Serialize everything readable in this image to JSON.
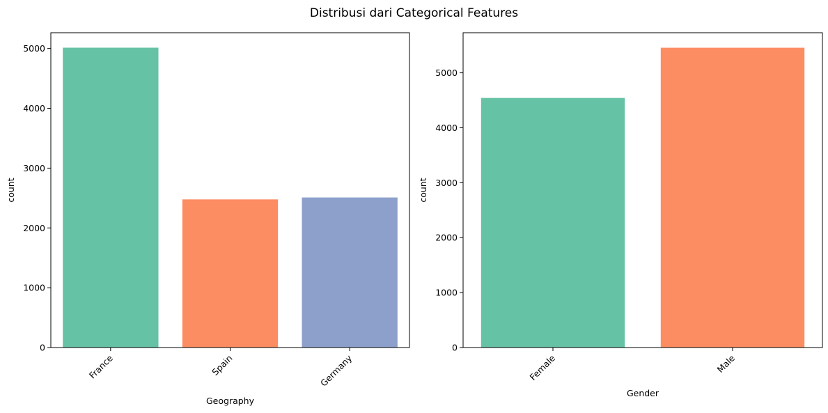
{
  "figure": {
    "title": "Distribusi dari Categorical Features"
  },
  "chart_data": [
    {
      "type": "bar",
      "title": "",
      "xlabel": "Geography",
      "ylabel": "count",
      "categories": [
        "France",
        "Spain",
        "Germany"
      ],
      "values": [
        5014,
        2477,
        2509
      ],
      "colors": [
        "#66c2a5",
        "#fc8d62",
        "#8da0cb"
      ],
      "ylim": [
        0,
        5264
      ],
      "yticks": [
        0,
        1000,
        2000,
        3000,
        4000,
        5000
      ],
      "ytick_labels": [
        "0",
        "1000",
        "2000",
        "3000",
        "4000",
        "5000"
      ],
      "xtick_rotation": 45,
      "grid": false,
      "legend": "none"
    },
    {
      "type": "bar",
      "title": "",
      "xlabel": "Gender",
      "ylabel": "count",
      "categories": [
        "Female",
        "Male"
      ],
      "values": [
        4543,
        5457
      ],
      "colors": [
        "#66c2a5",
        "#fc8d62"
      ],
      "ylim": [
        0,
        5730
      ],
      "yticks": [
        0,
        1000,
        2000,
        3000,
        4000,
        5000
      ],
      "ytick_labels": [
        "0",
        "1000",
        "2000",
        "3000",
        "4000",
        "5000"
      ],
      "xtick_rotation": 45,
      "grid": false,
      "legend": "none"
    }
  ]
}
